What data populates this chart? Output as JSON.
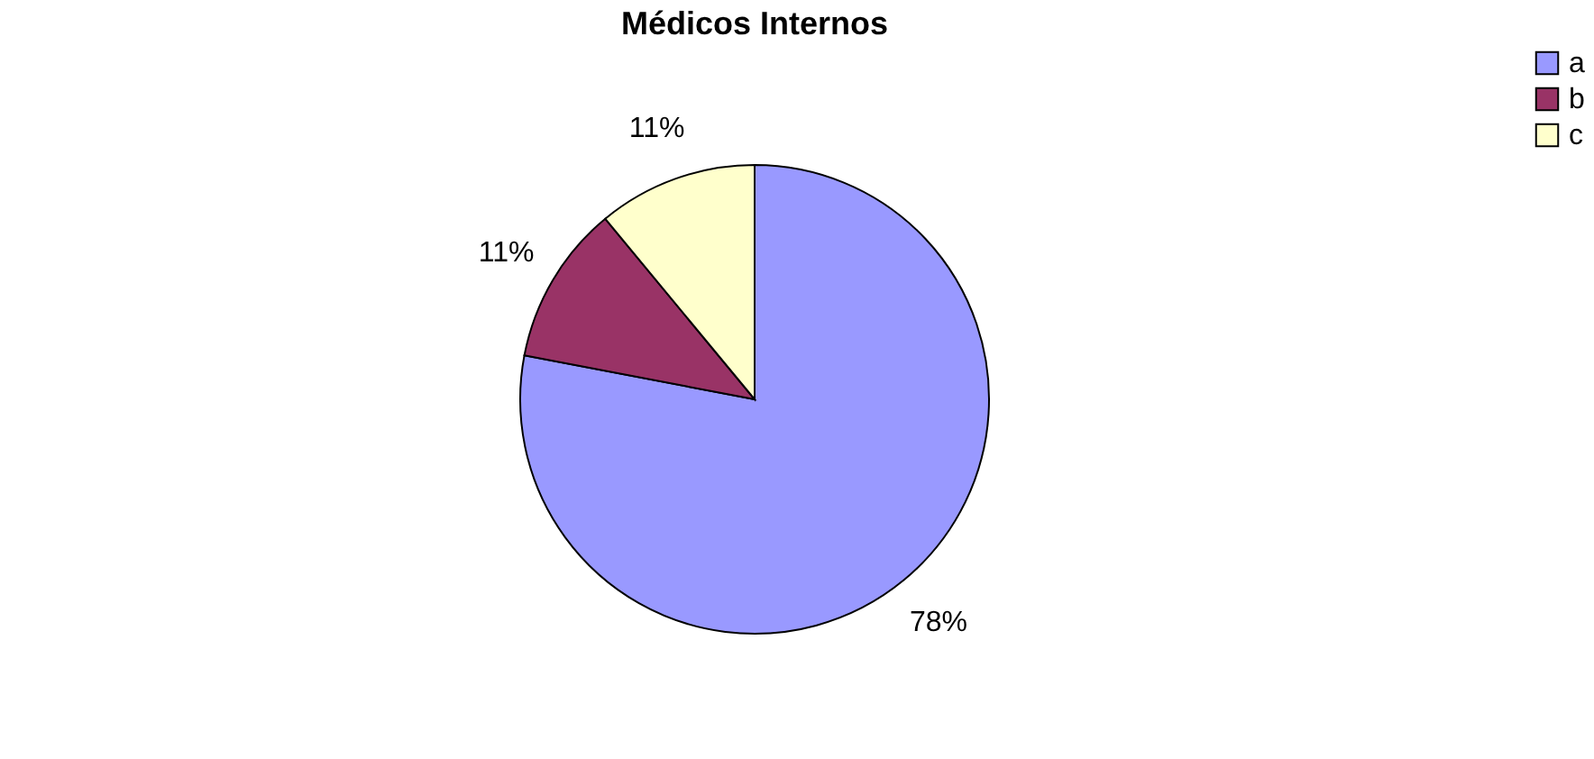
{
  "chart_data": {
    "type": "pie",
    "title": "Médicos Internos",
    "categories": [
      "a",
      "b",
      "c"
    ],
    "values": [
      78,
      11,
      11
    ],
    "colors": [
      "#9999ff",
      "#993366",
      "#ffffcc"
    ],
    "value_labels": [
      "78%",
      "11%",
      "11%"
    ],
    "legend": "right"
  }
}
